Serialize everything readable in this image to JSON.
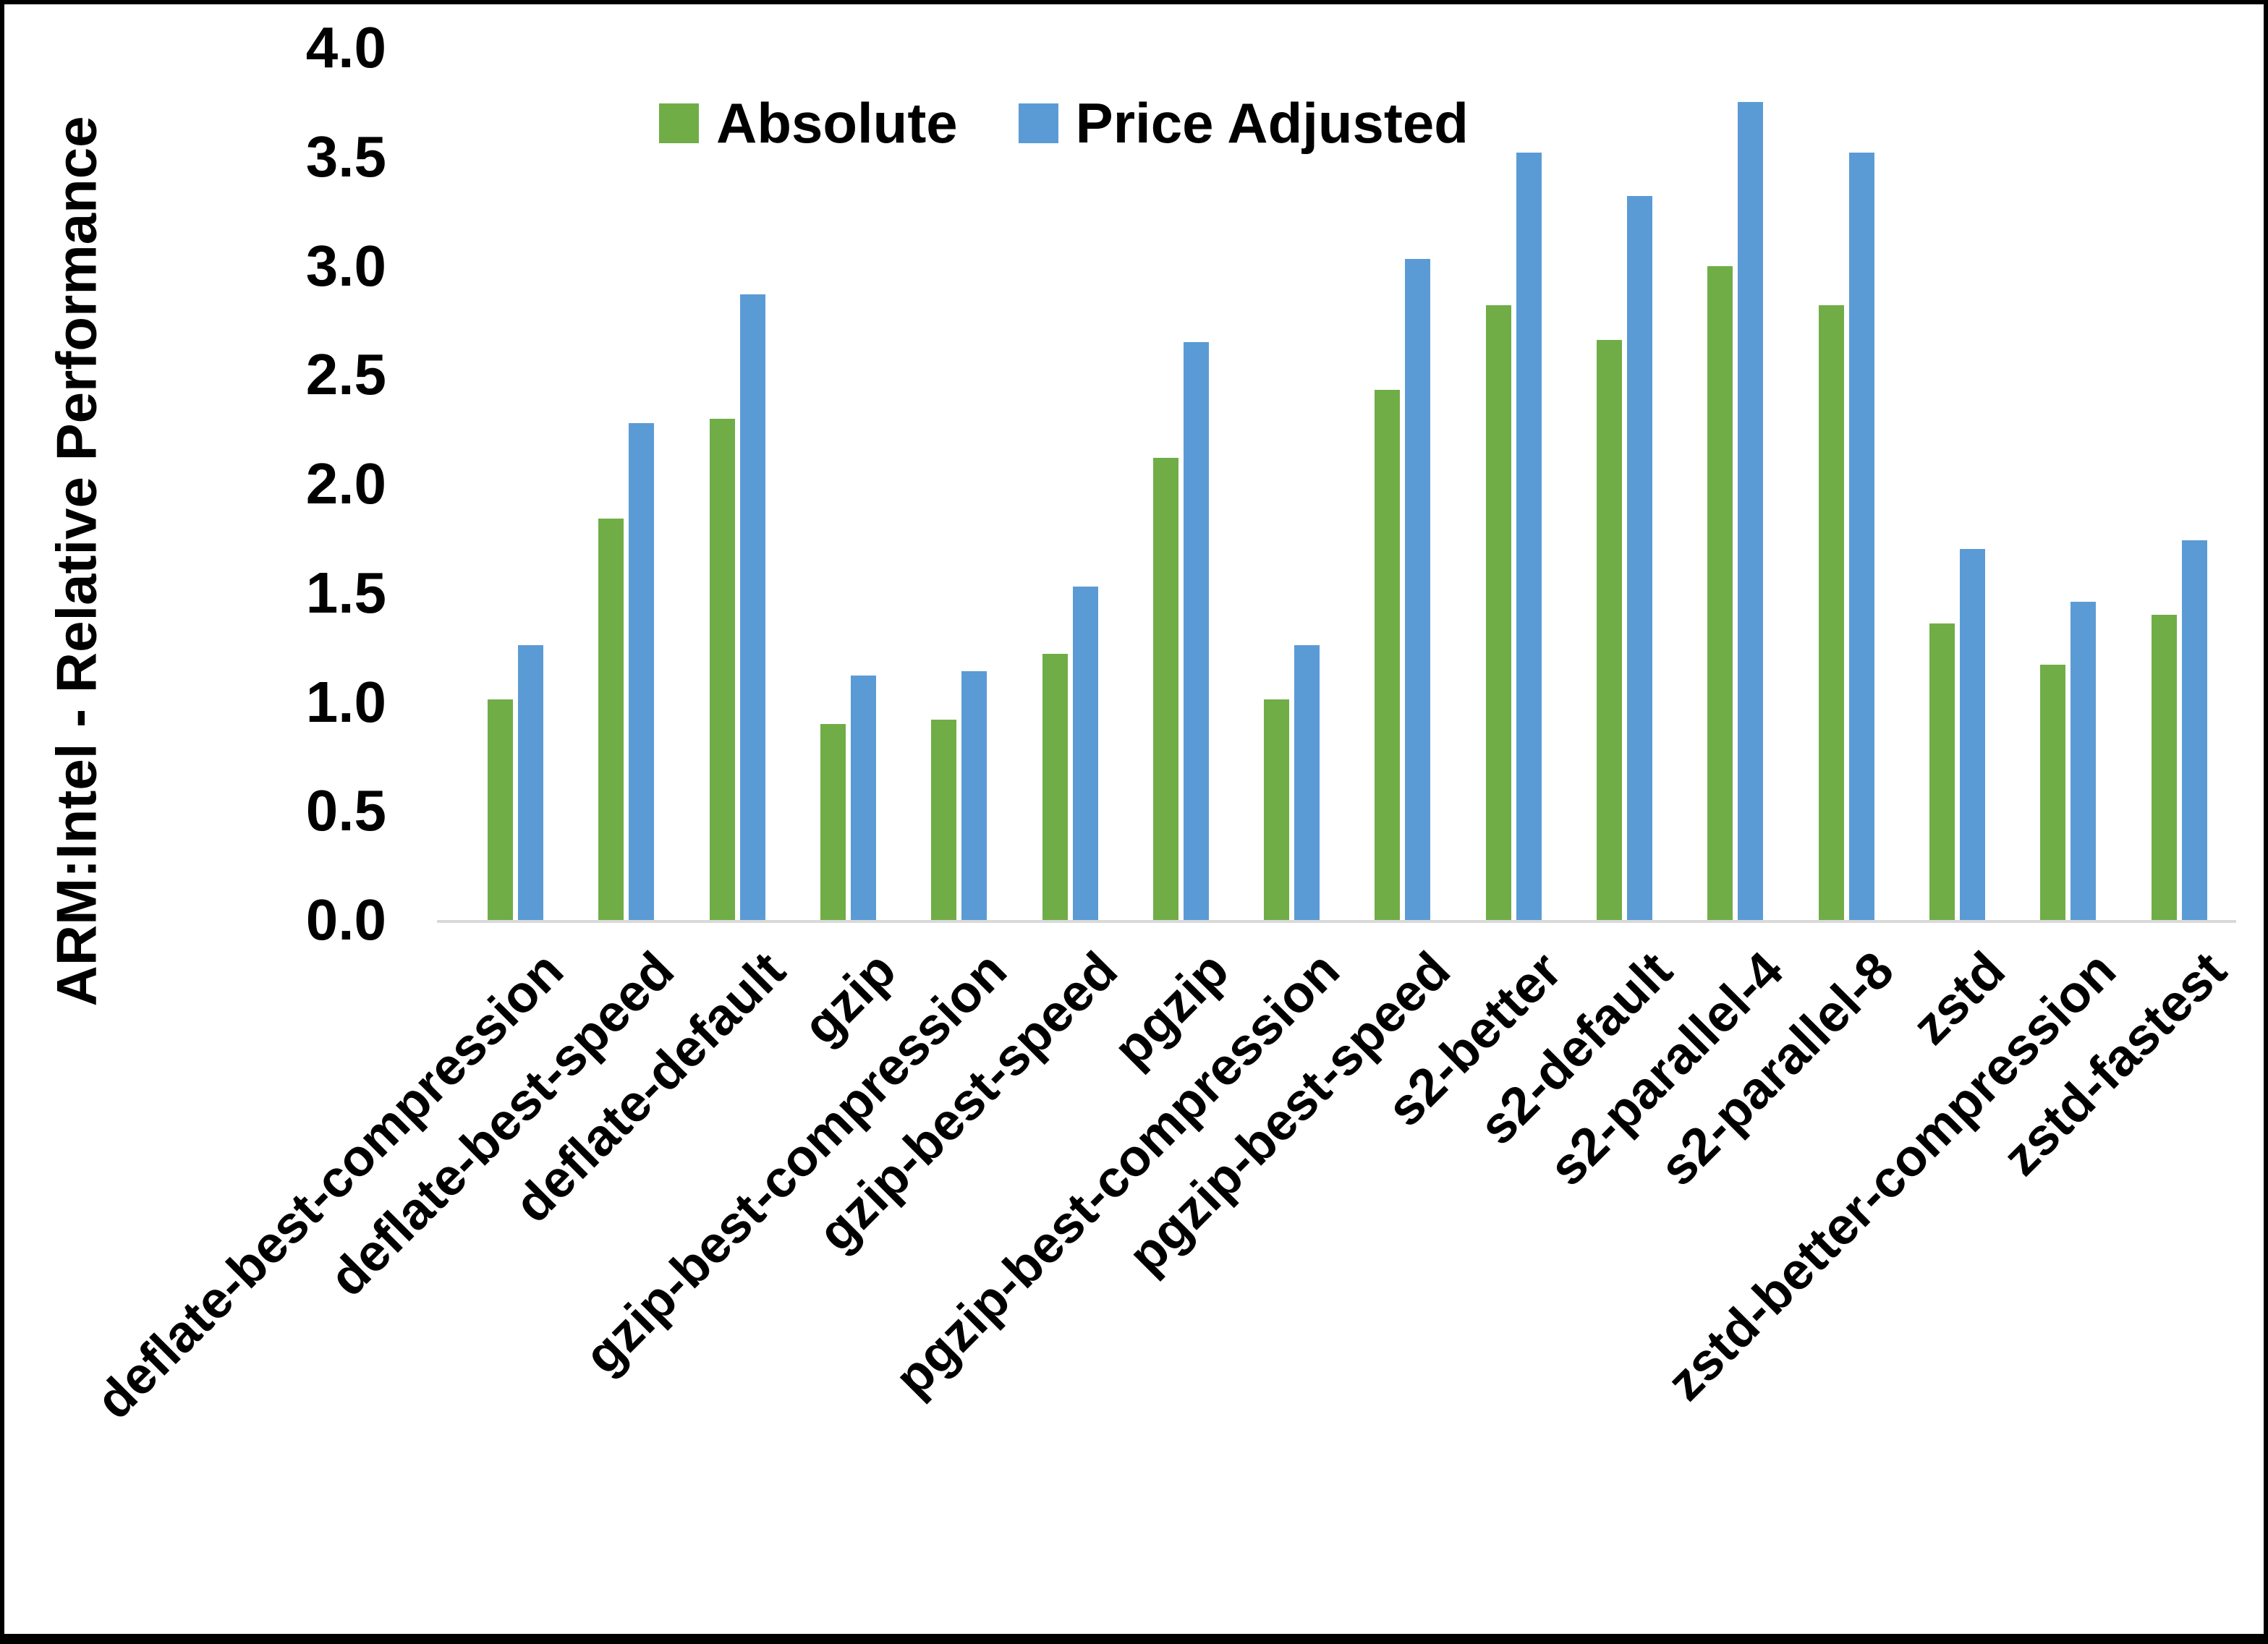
{
  "chart_data": {
    "type": "bar",
    "title": "",
    "ylabel": "ARM:Intel - Relative Performance",
    "xlabel": "",
    "ylim": [
      0.0,
      4.0
    ],
    "ytick_step": 0.5,
    "ytick_labels": [
      "0.0",
      "0.5",
      "1.0",
      "1.5",
      "2.0",
      "2.5",
      "3.0",
      "3.5",
      "4.0"
    ],
    "grid": false,
    "legend_position": "top",
    "axis_line_color": "#d9d9d9",
    "categories": [
      "deflate-best-compression",
      "deflate-best-speed",
      "deflate-default",
      "gzip",
      "gzip-best-compression",
      "gzip-best-speed",
      "pgzip",
      "pgzip-best-compression",
      "pgzip-best-speed",
      "s2-better",
      "s2-default",
      "s2-parallel-4",
      "s2-parallel-8",
      "zstd",
      "zstd-better-compression",
      "zstd-fastest"
    ],
    "series": [
      {
        "name": "Absolute",
        "color": "#70ad47",
        "values": [
          1.01,
          1.84,
          2.3,
          0.9,
          0.92,
          1.22,
          2.12,
          1.01,
          2.43,
          2.82,
          2.66,
          3.0,
          2.82,
          1.36,
          1.17,
          1.4
        ]
      },
      {
        "name": "Price Adjusted",
        "color": "#5b9bd5",
        "values": [
          1.26,
          2.28,
          2.87,
          1.12,
          1.14,
          1.53,
          2.65,
          1.26,
          3.03,
          3.52,
          3.32,
          3.75,
          3.52,
          1.7,
          1.46,
          1.74
        ]
      }
    ]
  }
}
